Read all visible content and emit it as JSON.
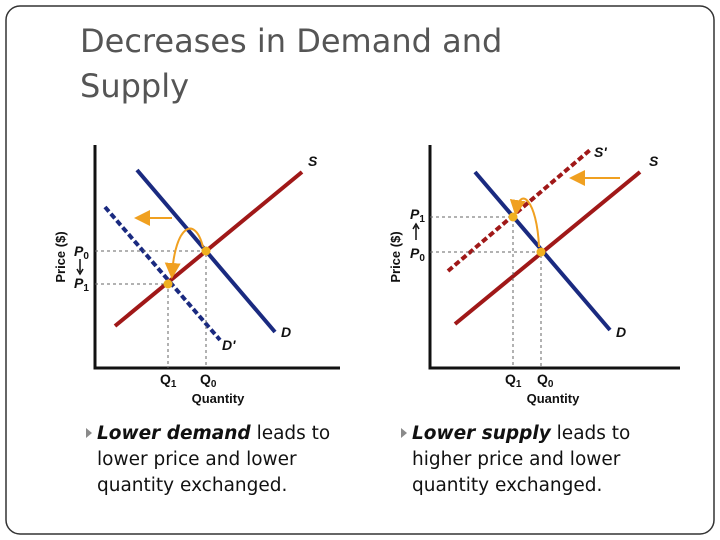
{
  "title": {
    "lines": [
      "Decreases in Demand and",
      "Supply"
    ]
  },
  "diagrams": [
    {
      "axis_y": "Price ($)",
      "axis_x": "Quantity",
      "curves": [
        "S",
        "D",
        "D'"
      ],
      "price_labels": [
        {
          "base": "P",
          "sub": "0"
        },
        {
          "base": "P",
          "sub": "1"
        }
      ],
      "quantity_labels": [
        {
          "base": "Q",
          "sub": "1"
        },
        {
          "base": "Q",
          "sub": "0"
        }
      ]
    },
    {
      "axis_y": "Price ($)",
      "axis_x": "Quantity",
      "curves": [
        "S'",
        "S",
        "D"
      ],
      "price_labels": [
        {
          "base": "P",
          "sub": "1"
        },
        {
          "base": "P",
          "sub": "0"
        }
      ],
      "quantity_labels": [
        {
          "base": "Q",
          "sub": "1"
        },
        {
          "base": "Q",
          "sub": "0"
        }
      ]
    }
  ],
  "bullets": [
    {
      "emphasis": "Lower demand",
      "text": "leads to",
      "lines": [
        "lower price and lower",
        "quantity exchanged."
      ]
    },
    {
      "emphasis": "Lower supply",
      "text": "leads to",
      "lines": [
        "higher price and lower",
        "quantity exchanged."
      ]
    }
  ]
}
